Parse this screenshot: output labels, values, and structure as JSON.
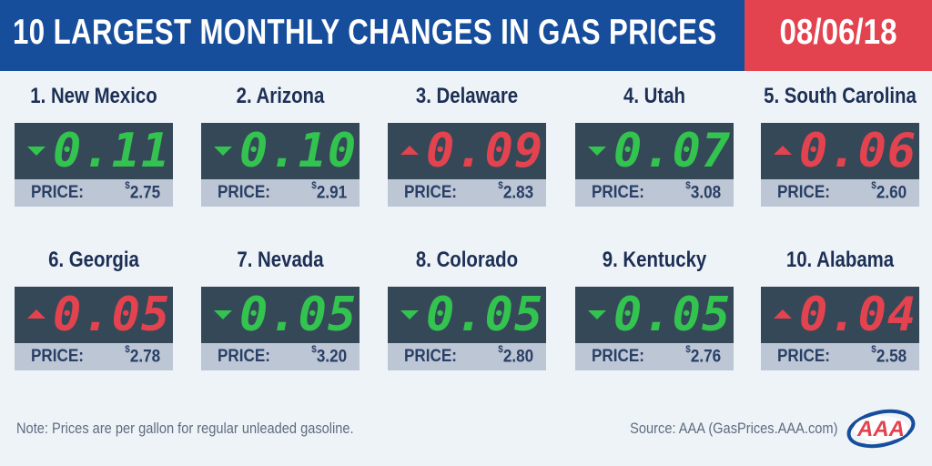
{
  "header": {
    "title": "10 LARGEST MONTHLY CHANGES IN GAS PRICES",
    "date": "08/06/18"
  },
  "price_label": "PRICE:",
  "currency": "$",
  "colors": {
    "header_blue": "#174e9c",
    "accent_red": "#e3434e",
    "down_green": "#33c34f",
    "display_bg": "#354858"
  },
  "states": [
    {
      "rank_name": "1. New Mexico",
      "change": "0.11",
      "direction": "down",
      "price": "2.75"
    },
    {
      "rank_name": "2. Arizona",
      "change": "0.10",
      "direction": "down",
      "price": "2.91"
    },
    {
      "rank_name": "3. Delaware",
      "change": "0.09",
      "direction": "up",
      "price": "2.83"
    },
    {
      "rank_name": "4. Utah",
      "change": "0.07",
      "direction": "down",
      "price": "3.08"
    },
    {
      "rank_name": "5. South Carolina",
      "change": "0.06",
      "direction": "up",
      "price": "2.60"
    },
    {
      "rank_name": "6. Georgia",
      "change": "0.05",
      "direction": "up",
      "price": "2.78"
    },
    {
      "rank_name": "7. Nevada",
      "change": "0.05",
      "direction": "down",
      "price": "3.20"
    },
    {
      "rank_name": "8. Colorado",
      "change": "0.05",
      "direction": "down",
      "price": "2.80"
    },
    {
      "rank_name": "9. Kentucky",
      "change": "0.05",
      "direction": "down",
      "price": "2.76"
    },
    {
      "rank_name": "10. Alabama",
      "change": "0.04",
      "direction": "up",
      "price": "2.58"
    }
  ],
  "footer": {
    "note": "Note: Prices are per gallon for regular unleaded gasoline.",
    "source": "Source: AAA (GasPrices.AAA.com)",
    "logo_text": "AAA"
  }
}
